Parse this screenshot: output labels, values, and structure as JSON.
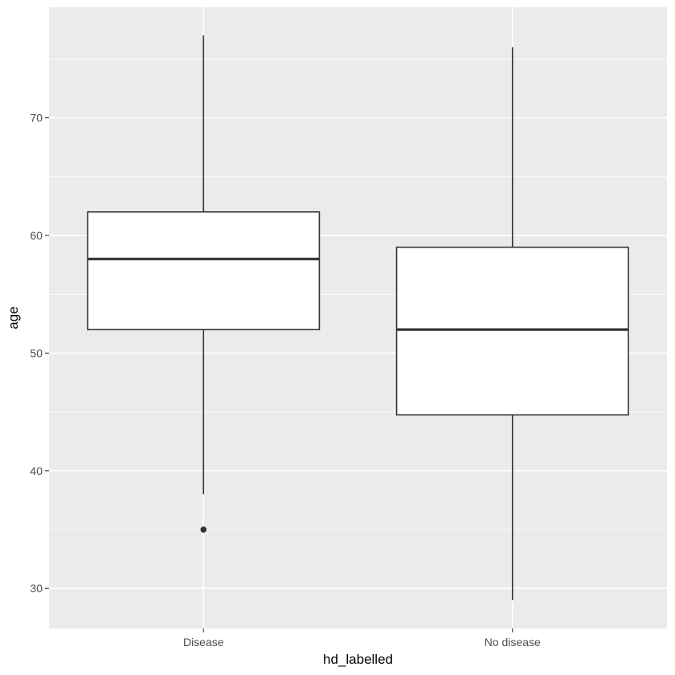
{
  "chart_data": {
    "type": "boxplot",
    "xlabel": "hd_labelled",
    "ylabel": "age",
    "categories": [
      "Disease",
      "No disease"
    ],
    "ylim": [
      26.6,
      79.4
    ],
    "y_ticks": [
      30,
      40,
      50,
      60,
      70
    ],
    "y_minor_ticks": [
      35,
      45,
      55,
      65,
      75
    ],
    "grid": true,
    "boxes": [
      {
        "category": "Disease",
        "whisker_low": 38,
        "q1": 52,
        "median": 58,
        "q3": 62,
        "whisker_high": 77,
        "outliers": [
          35
        ]
      },
      {
        "category": "No disease",
        "whisker_low": 29,
        "q1": 44.75,
        "median": 52,
        "q3": 59,
        "whisker_high": 76,
        "outliers": []
      }
    ]
  },
  "colors": {
    "panel_background": "#ebebeb",
    "grid_line": "#ffffff",
    "box_fill": "#ffffff",
    "box_stroke": "#333333",
    "tick_text": "#4d4d4d",
    "axis_title": "#000000"
  }
}
